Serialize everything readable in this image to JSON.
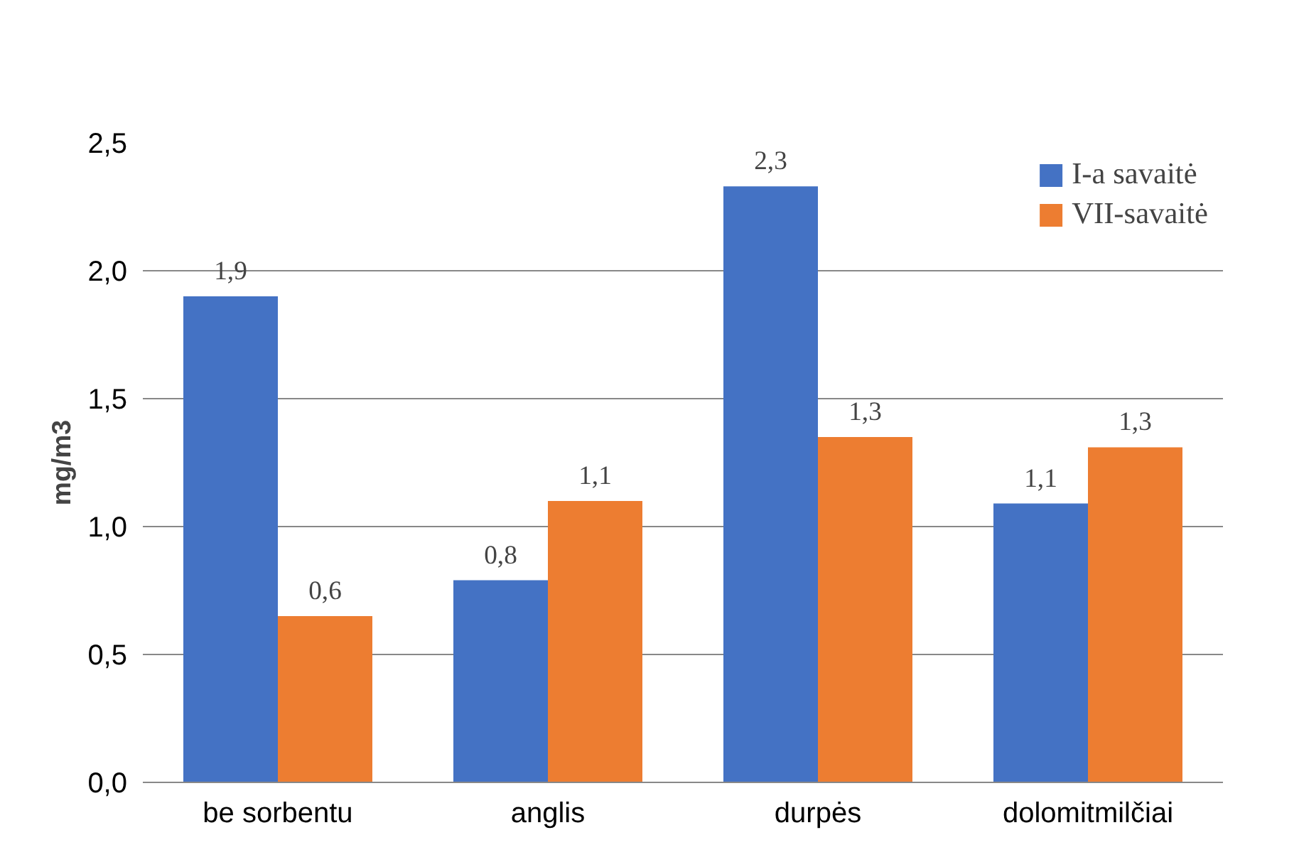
{
  "chart_data": {
    "type": "bar",
    "ylabel": "mg/m3",
    "categories": [
      "be sorbentu",
      "anglis",
      "durpės",
      "dolomitmilčiai"
    ],
    "series": [
      {
        "name": "I-a savaitė",
        "color": "#4472c4",
        "values": [
          1.9,
          0.79,
          2.33,
          1.09
        ],
        "value_labels": [
          "1,9",
          "0,8",
          "2,3",
          "1,1"
        ]
      },
      {
        "name": "VII-savaitė",
        "color": "#ed7d31",
        "values": [
          0.65,
          1.1,
          1.35,
          1.31
        ],
        "value_labels": [
          "0,6",
          "1,1",
          "1,3",
          "1,3"
        ]
      }
    ],
    "ylim": [
      0,
      2.5
    ],
    "yticks": [
      {
        "value": 0,
        "label": "0,0"
      },
      {
        "value": 0.5,
        "label": "0,5"
      },
      {
        "value": 1,
        "label": "1,0"
      },
      {
        "value": 1.5,
        "label": "1,5"
      },
      {
        "value": 2,
        "label": "2,0"
      },
      {
        "value": 2.5,
        "label": "2,5"
      }
    ],
    "grid": "y",
    "legend": "top right"
  }
}
